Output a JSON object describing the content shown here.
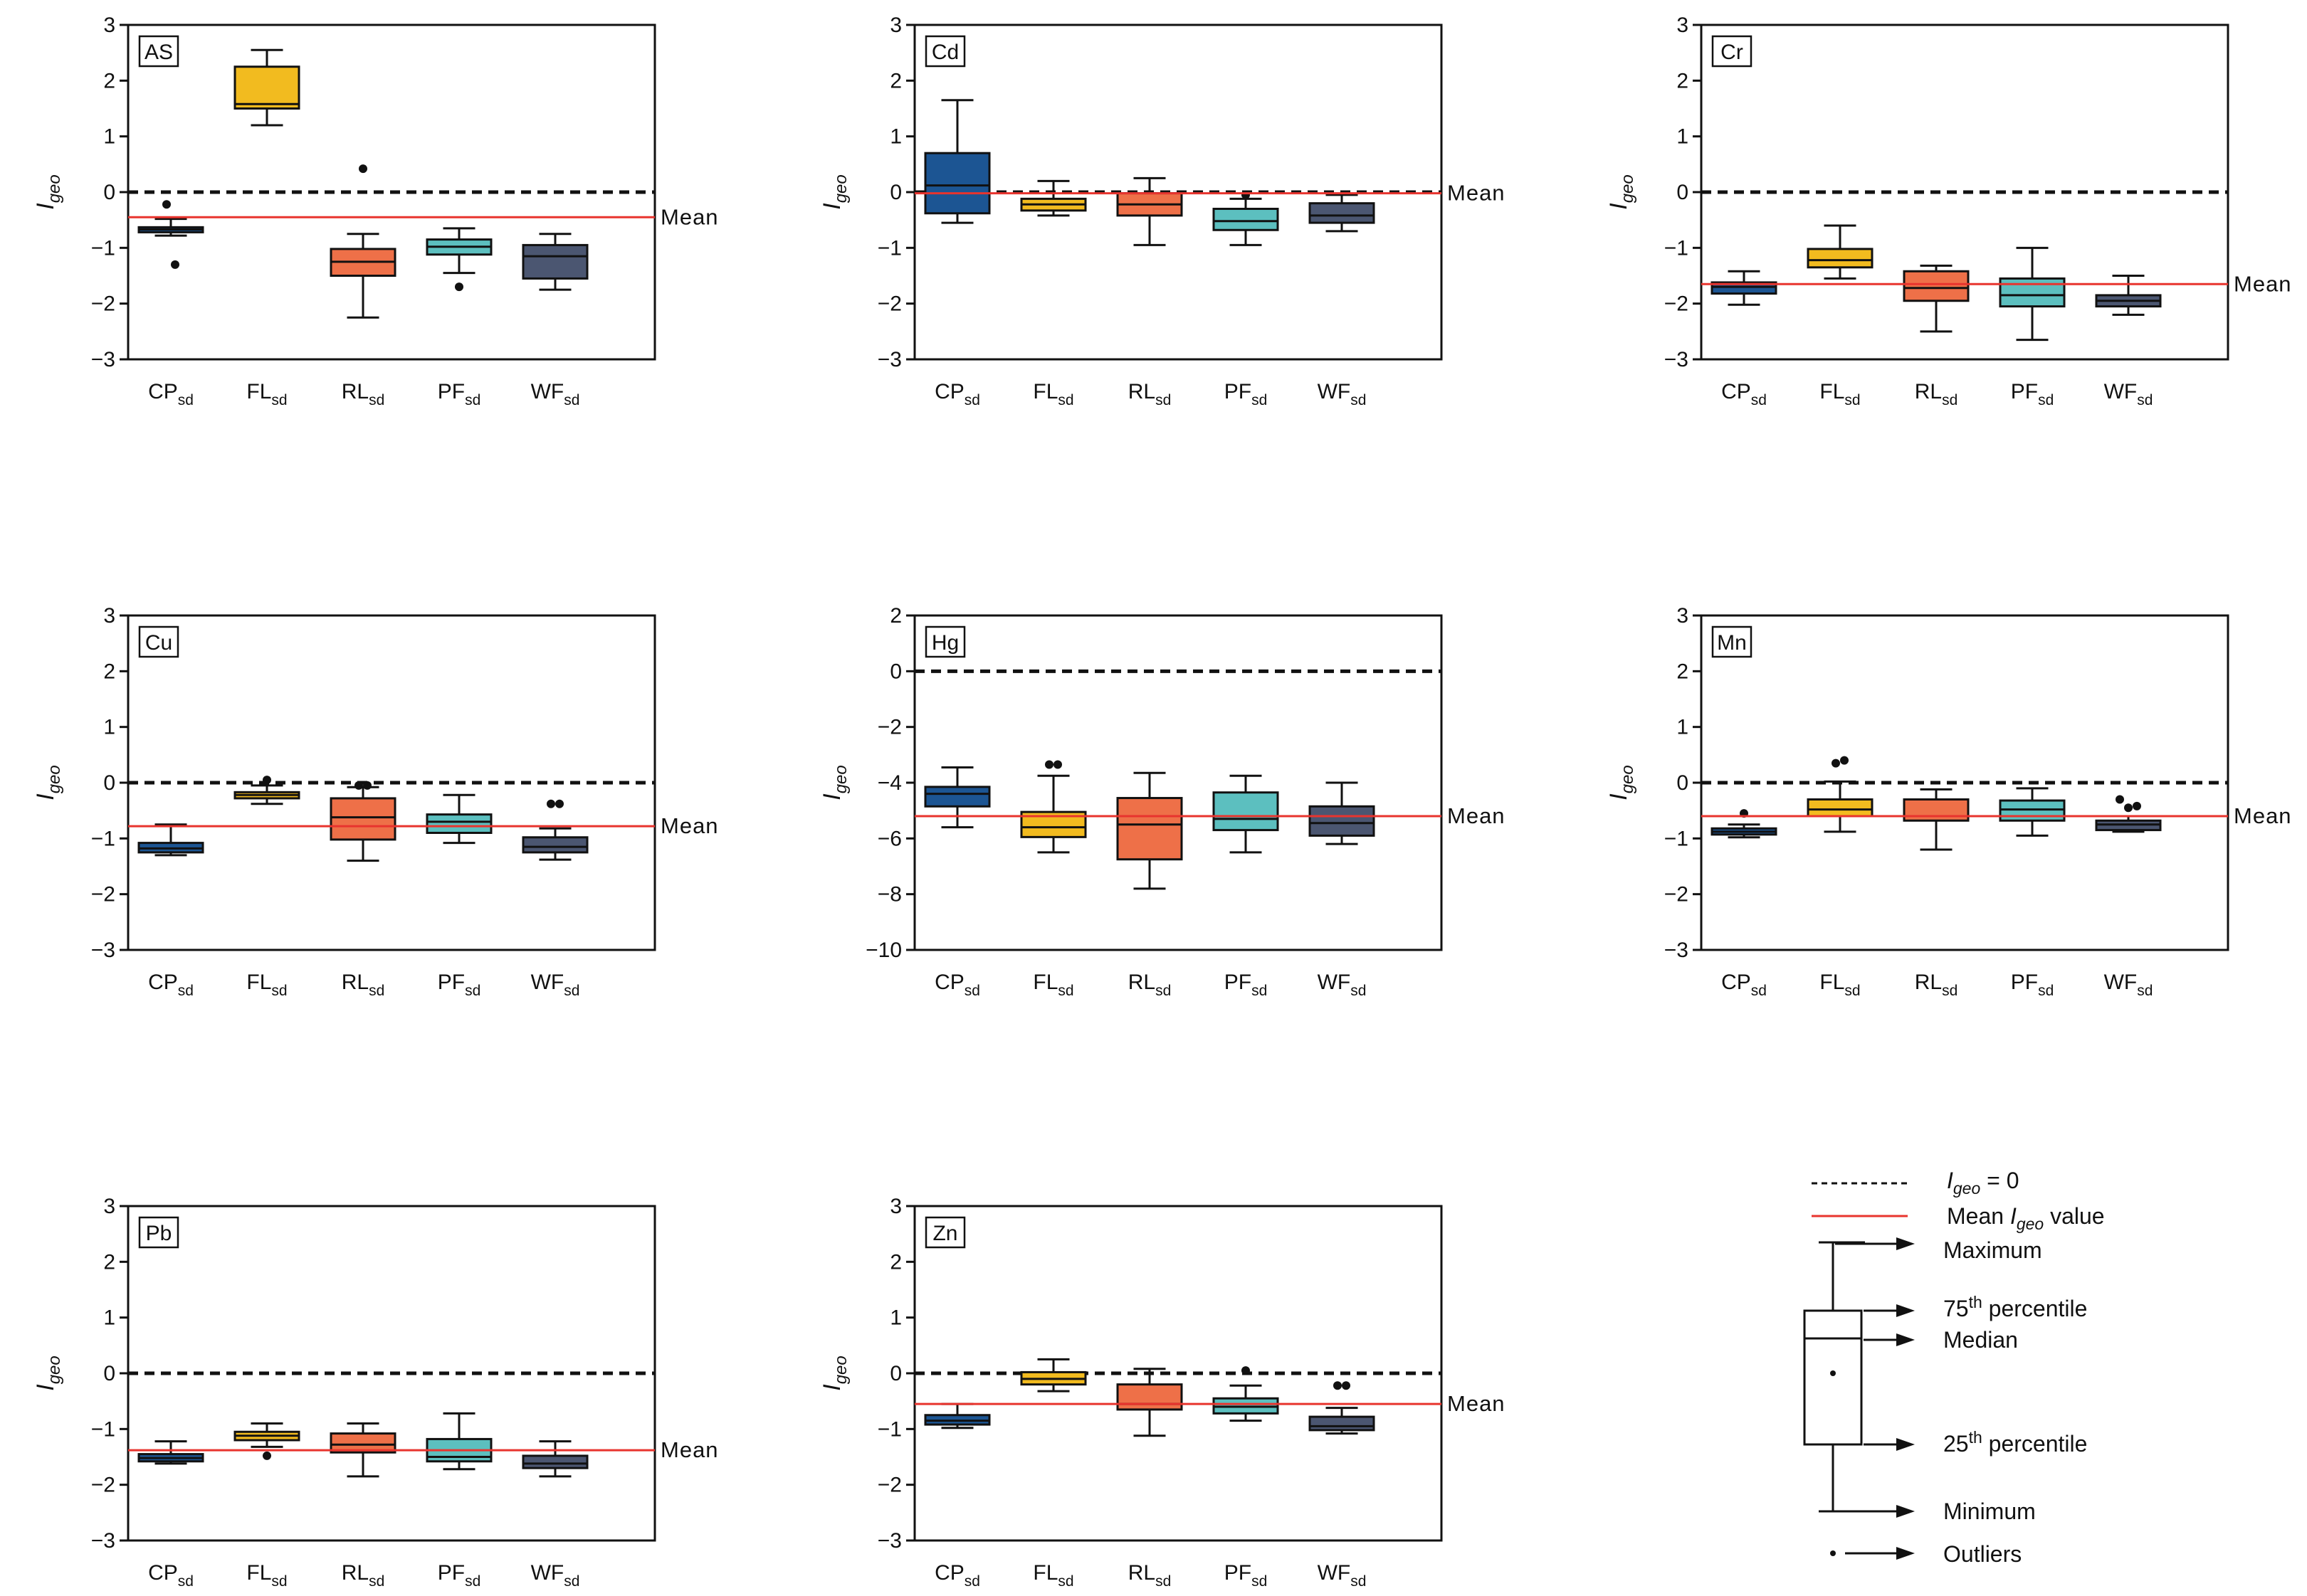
{
  "colors": {
    "CP": "#1c5593",
    "FL": "#f2bb1f",
    "RL": "#ee7048",
    "PF": "#5cbfbf",
    "WF": "#4b5671",
    "mean_line": "#e8342e",
    "zero_line": "#111111"
  },
  "legend": {
    "zero_label_main": "I",
    "zero_label_sub": "geo",
    "zero_label_rest": " = 0",
    "mean_label_prefix": "Mean ",
    "mean_label_italic": "I",
    "mean_label_sub": "geo",
    "mean_label_suffix": "  value",
    "maximum": "Maximum",
    "p75_main": "75",
    "p75_sup": "th",
    "p75_rest": " percentile",
    "median": "Median",
    "p25_main": "25",
    "p25_sup": "th",
    "p25_rest": " percentile",
    "minimum": "Minimum",
    "outliers": "Outliers"
  },
  "chart_data": [
    {
      "type": "box",
      "element": "AS",
      "ylabel_main": "I",
      "ylabel_sub": "geo",
      "ylim": [
        -3,
        3
      ],
      "yticks": [
        3,
        2,
        1,
        0,
        -1,
        -2,
        -3
      ],
      "ytick_labels": [
        "3",
        "2",
        "1",
        "0",
        "−1",
        "−2",
        "−3"
      ],
      "mean": -0.45,
      "mean_label": "Mean",
      "categories": [
        {
          "main": "CP",
          "sub": "sd",
          "key": "CP",
          "min": -0.78,
          "q1": -0.72,
          "median": -0.67,
          "q3": -0.63,
          "max": -0.48,
          "outliers": [
            -0.22,
            -1.3
          ]
        },
        {
          "main": "FL",
          "sub": "sd",
          "key": "FL",
          "min": 1.2,
          "q1": 1.5,
          "median": 1.58,
          "q3": 2.25,
          "max": 2.55,
          "outliers": []
        },
        {
          "main": "RL",
          "sub": "sd",
          "key": "RL",
          "min": -2.25,
          "q1": -1.5,
          "median": -1.25,
          "q3": -1.02,
          "max": -0.75,
          "outliers": [
            0.42
          ]
        },
        {
          "main": "PF",
          "sub": "sd",
          "key": "PF",
          "min": -1.45,
          "q1": -1.12,
          "median": -0.98,
          "q3": -0.85,
          "max": -0.65,
          "outliers": [
            -1.7
          ]
        },
        {
          "main": "WF",
          "sub": "sd",
          "key": "WF",
          "min": -1.75,
          "q1": -1.55,
          "median": -1.15,
          "q3": -0.95,
          "max": -0.75,
          "outliers": []
        }
      ]
    },
    {
      "type": "box",
      "element": "Cd",
      "ylabel_main": "I",
      "ylabel_sub": "geo",
      "ylim": [
        -3,
        3
      ],
      "yticks": [
        3,
        2,
        1,
        0,
        -1,
        -2,
        -3
      ],
      "ytick_labels": [
        "3",
        "2",
        "1",
        "0",
        "−1",
        "−2",
        "−3"
      ],
      "mean": -0.02,
      "mean_label": "Mean",
      "categories": [
        {
          "main": "CP",
          "sub": "sd",
          "key": "CP",
          "min": -0.55,
          "q1": -0.38,
          "median": 0.12,
          "q3": 0.7,
          "max": 1.65,
          "outliers": []
        },
        {
          "main": "FL",
          "sub": "sd",
          "key": "FL",
          "min": -0.42,
          "q1": -0.33,
          "median": -0.22,
          "q3": -0.12,
          "max": 0.2,
          "outliers": []
        },
        {
          "main": "RL",
          "sub": "sd",
          "key": "RL",
          "min": -0.95,
          "q1": -0.42,
          "median": -0.22,
          "q3": -0.02,
          "max": 0.25,
          "outliers": []
        },
        {
          "main": "PF",
          "sub": "sd",
          "key": "PF",
          "min": -0.95,
          "q1": -0.68,
          "median": -0.52,
          "q3": -0.3,
          "max": -0.12,
          "outliers": [
            -0.05
          ]
        },
        {
          "main": "WF",
          "sub": "sd",
          "key": "WF",
          "min": -0.7,
          "q1": -0.55,
          "median": -0.42,
          "q3": -0.2,
          "max": -0.05,
          "outliers": []
        }
      ]
    },
    {
      "type": "box",
      "element": "Cr",
      "ylabel_main": "I",
      "ylabel_sub": "geo",
      "ylim": [
        -3,
        3
      ],
      "yticks": [
        3,
        2,
        1,
        0,
        -1,
        -2,
        -3
      ],
      "ytick_labels": [
        "3",
        "2",
        "1",
        "0",
        "−1",
        "−2",
        "−3"
      ],
      "mean": -1.65,
      "mean_label": "Mean",
      "categories": [
        {
          "main": "CP",
          "sub": "sd",
          "key": "CP",
          "min": -2.02,
          "q1": -1.82,
          "median": -1.7,
          "q3": -1.62,
          "max": -1.42,
          "outliers": []
        },
        {
          "main": "FL",
          "sub": "sd",
          "key": "FL",
          "min": -1.55,
          "q1": -1.35,
          "median": -1.22,
          "q3": -1.02,
          "max": -0.6,
          "outliers": []
        },
        {
          "main": "RL",
          "sub": "sd",
          "key": "RL",
          "min": -2.5,
          "q1": -1.95,
          "median": -1.72,
          "q3": -1.42,
          "max": -1.32,
          "outliers": []
        },
        {
          "main": "PF",
          "sub": "sd",
          "key": "PF",
          "min": -2.65,
          "q1": -2.05,
          "median": -1.85,
          "q3": -1.55,
          "max": -1.0,
          "outliers": []
        },
        {
          "main": "WF",
          "sub": "sd",
          "key": "WF",
          "min": -2.2,
          "q1": -2.05,
          "median": -1.95,
          "q3": -1.85,
          "max": -1.5,
          "outliers": []
        }
      ]
    },
    {
      "type": "box",
      "element": "Cu",
      "ylabel_main": "I",
      "ylabel_sub": "geo",
      "ylim": [
        -3,
        3
      ],
      "yticks": [
        3,
        2,
        1,
        0,
        -1,
        -2,
        -3
      ],
      "ytick_labels": [
        "3",
        "2",
        "1",
        "0",
        "−1",
        "−2",
        "−3"
      ],
      "mean": -0.78,
      "mean_label": "Mean",
      "categories": [
        {
          "main": "CP",
          "sub": "sd",
          "key": "CP",
          "min": -1.3,
          "q1": -1.25,
          "median": -1.18,
          "q3": -1.08,
          "max": -0.75,
          "outliers": []
        },
        {
          "main": "FL",
          "sub": "sd",
          "key": "FL",
          "min": -0.38,
          "q1": -0.28,
          "median": -0.22,
          "q3": -0.17,
          "max": -0.05,
          "outliers": [
            0.05
          ]
        },
        {
          "main": "RL",
          "sub": "sd",
          "key": "RL",
          "min": -1.4,
          "q1": -1.02,
          "median": -0.62,
          "q3": -0.28,
          "max": -0.08,
          "outliers": [
            -0.05,
            -0.05
          ]
        },
        {
          "main": "PF",
          "sub": "sd",
          "key": "PF",
          "min": -1.08,
          "q1": -0.9,
          "median": -0.7,
          "q3": -0.57,
          "max": -0.22,
          "outliers": []
        },
        {
          "main": "WF",
          "sub": "sd",
          "key": "WF",
          "min": -1.38,
          "q1": -1.25,
          "median": -1.15,
          "q3": -0.98,
          "max": -0.82,
          "outliers": [
            -0.38,
            -0.38
          ]
        }
      ]
    },
    {
      "type": "box",
      "element": "Hg",
      "ylabel_main": "I",
      "ylabel_sub": "geo",
      "ylim": [
        -10,
        2
      ],
      "yticks": [
        2,
        0,
        -2,
        -4,
        -6,
        -8,
        -10
      ],
      "ytick_labels": [
        "2",
        "0",
        "−2",
        "−4",
        "−6",
        "−8",
        "−10"
      ],
      "mean": -5.2,
      "mean_label": "Mean",
      "categories": [
        {
          "main": "CP",
          "sub": "sd",
          "key": "CP",
          "min": -5.6,
          "q1": -4.85,
          "median": -4.4,
          "q3": -4.15,
          "max": -3.45,
          "outliers": []
        },
        {
          "main": "FL",
          "sub": "sd",
          "key": "FL",
          "min": -6.5,
          "q1": -5.95,
          "median": -5.6,
          "q3": -5.05,
          "max": -3.75,
          "outliers": [
            -3.35,
            -3.35
          ]
        },
        {
          "main": "RL",
          "sub": "sd",
          "key": "RL",
          "min": -7.8,
          "q1": -6.75,
          "median": -5.5,
          "q3": -4.55,
          "max": -3.65,
          "outliers": []
        },
        {
          "main": "PF",
          "sub": "sd",
          "key": "PF",
          "min": -6.5,
          "q1": -5.7,
          "median": -5.3,
          "q3": -4.35,
          "max": -3.75,
          "outliers": []
        },
        {
          "main": "WF",
          "sub": "sd",
          "key": "WF",
          "min": -6.2,
          "q1": -5.9,
          "median": -5.45,
          "q3": -4.85,
          "max": -4.0,
          "outliers": []
        }
      ]
    },
    {
      "type": "box",
      "element": "Mn",
      "ylabel_main": "I",
      "ylabel_sub": "geo",
      "ylim": [
        -3,
        3
      ],
      "yticks": [
        3,
        2,
        1,
        0,
        -1,
        -2,
        -3
      ],
      "ytick_labels": [
        "3",
        "2",
        "1",
        "0",
        "−1",
        "−2",
        "−3"
      ],
      "mean": -0.6,
      "mean_label": "Mean",
      "categories": [
        {
          "main": "CP",
          "sub": "sd",
          "key": "CP",
          "min": -0.98,
          "q1": -0.93,
          "median": -0.88,
          "q3": -0.82,
          "max": -0.75,
          "outliers": [
            -0.55
          ]
        },
        {
          "main": "FL",
          "sub": "sd",
          "key": "FL",
          "min": -0.88,
          "q1": -0.6,
          "median": -0.48,
          "q3": -0.3,
          "max": 0.02,
          "outliers": [
            0.35,
            0.4
          ]
        },
        {
          "main": "RL",
          "sub": "sd",
          "key": "RL",
          "min": -1.2,
          "q1": -0.68,
          "median": -0.6,
          "q3": -0.3,
          "max": -0.12,
          "outliers": []
        },
        {
          "main": "PF",
          "sub": "sd",
          "key": "PF",
          "min": -0.95,
          "q1": -0.68,
          "median": -0.48,
          "q3": -0.32,
          "max": -0.1,
          "outliers": []
        },
        {
          "main": "WF",
          "sub": "sd",
          "key": "WF",
          "min": -0.88,
          "q1": -0.85,
          "median": -0.75,
          "q3": -0.68,
          "max": -0.6,
          "outliers": [
            -0.3,
            -0.45,
            -0.42
          ]
        }
      ]
    },
    {
      "type": "box",
      "element": "Pb",
      "ylabel_main": "I",
      "ylabel_sub": "geo",
      "ylim": [
        -3,
        3
      ],
      "yticks": [
        3,
        2,
        1,
        0,
        -1,
        -2,
        -3
      ],
      "ytick_labels": [
        "3",
        "2",
        "1",
        "0",
        "−1",
        "−2",
        "−3"
      ],
      "mean": -1.38,
      "mean_label": "Mean",
      "categories": [
        {
          "main": "CP",
          "sub": "sd",
          "key": "CP",
          "min": -1.62,
          "q1": -1.58,
          "median": -1.52,
          "q3": -1.45,
          "max": -1.22,
          "outliers": []
        },
        {
          "main": "FL",
          "sub": "sd",
          "key": "FL",
          "min": -1.32,
          "q1": -1.2,
          "median": -1.12,
          "q3": -1.05,
          "max": -0.9,
          "outliers": [
            -1.48
          ]
        },
        {
          "main": "RL",
          "sub": "sd",
          "key": "RL",
          "min": -1.85,
          "q1": -1.42,
          "median": -1.28,
          "q3": -1.08,
          "max": -0.9,
          "outliers": []
        },
        {
          "main": "PF",
          "sub": "sd",
          "key": "PF",
          "min": -1.72,
          "q1": -1.58,
          "median": -1.5,
          "q3": -1.18,
          "max": -0.72,
          "outliers": []
        },
        {
          "main": "WF",
          "sub": "sd",
          "key": "WF",
          "min": -1.85,
          "q1": -1.7,
          "median": -1.62,
          "q3": -1.48,
          "max": -1.22,
          "outliers": []
        }
      ]
    },
    {
      "type": "box",
      "element": "Zn",
      "ylabel_main": "I",
      "ylabel_sub": "geo",
      "ylim": [
        -3,
        3
      ],
      "yticks": [
        3,
        2,
        1,
        0,
        -1,
        -2,
        -3
      ],
      "ytick_labels": [
        "3",
        "2",
        "1",
        "0",
        "−1",
        "−2",
        "−3"
      ],
      "mean": -0.55,
      "mean_label": "Mean",
      "categories": [
        {
          "main": "CP",
          "sub": "sd",
          "key": "CP",
          "min": -0.98,
          "q1": -0.92,
          "median": -0.85,
          "q3": -0.75,
          "max": -0.55,
          "outliers": []
        },
        {
          "main": "FL",
          "sub": "sd",
          "key": "FL",
          "min": -0.32,
          "q1": -0.2,
          "median": -0.1,
          "q3": 0.02,
          "max": 0.25,
          "outliers": []
        },
        {
          "main": "RL",
          "sub": "sd",
          "key": "RL",
          "min": -1.12,
          "q1": -0.65,
          "median": -0.55,
          "q3": -0.2,
          "max": 0.08,
          "outliers": []
        },
        {
          "main": "PF",
          "sub": "sd",
          "key": "PF",
          "min": -0.85,
          "q1": -0.72,
          "median": -0.6,
          "q3": -0.45,
          "max": -0.22,
          "outliers": [
            0.05
          ]
        },
        {
          "main": "WF",
          "sub": "sd",
          "key": "WF",
          "min": -1.08,
          "q1": -1.02,
          "median": -0.95,
          "q3": -0.78,
          "max": -0.62,
          "outliers": [
            -0.22,
            -0.22
          ]
        }
      ]
    }
  ]
}
